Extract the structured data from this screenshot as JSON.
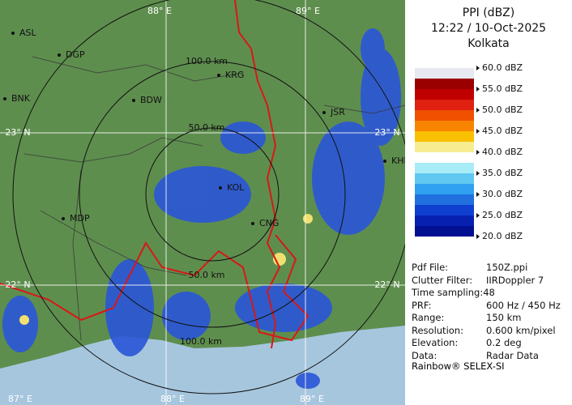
{
  "map": {
    "grid_labels": [
      "88° E",
      "89° E",
      "23° N",
      "23° N",
      "22° N",
      "22° N",
      "87° E",
      "88° E",
      "89° E"
    ],
    "range_labels": [
      "100.0 km",
      "50.0 km",
      "50.0 km",
      "100.0 km"
    ],
    "places": [
      "ASL",
      "DGP",
      "BNK",
      "BDW",
      "KRG",
      "MDP",
      "JSR",
      "KOL",
      "CNG",
      "KHL"
    ]
  },
  "legend": {
    "title": "PPI (dBZ)",
    "time": "12:22 / 10-Oct-2025",
    "station": "Kolkata",
    "levels": [
      "60.0 dBZ",
      "55.0 dBZ",
      "50.0 dBZ",
      "45.0 dBZ",
      "40.0 dBZ",
      "35.0 dBZ",
      "30.0 dBZ",
      "25.0 dBZ",
      "20.0 dBZ"
    ],
    "scale_colors": [
      "#e8e8f0",
      "#9a0000",
      "#c00000",
      "#e02010",
      "#f05000",
      "#f88400",
      "#f8c000",
      "#f8ec90",
      "#ffffff",
      "#a8ecf8",
      "#60c8f0",
      "#30a0f0",
      "#2070e0",
      "#1040d0",
      "#0820b0",
      "#001090"
    ]
  },
  "info": {
    "rows": [
      [
        "Pdf File:",
        "150Z.ppi"
      ],
      [
        "Clutter Filter:",
        "IIRDoppler 7"
      ],
      [
        "Time sampling:48",
        ""
      ],
      [
        "PRF:",
        "600 Hz / 450 Hz"
      ],
      [
        "Range:",
        "150 km"
      ],
      [
        "Resolution:",
        "0.600 km/pixel"
      ],
      [
        "Elevation:",
        "0.2 deg"
      ],
      [
        "Data:",
        "Radar Data"
      ]
    ],
    "footer": "Rainbow® SELEX-SI"
  }
}
